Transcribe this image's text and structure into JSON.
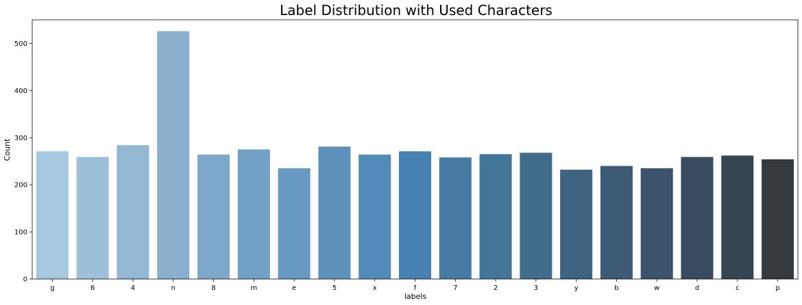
{
  "chart_data": {
    "type": "bar",
    "title": "Label Distribution with Used Characters",
    "xlabel": "labels",
    "ylabel": "Count",
    "categories": [
      "g",
      "6",
      "4",
      "n",
      "8",
      "m",
      "e",
      "5",
      "x",
      "f",
      "7",
      "2",
      "3",
      "y",
      "b",
      "w",
      "d",
      "c",
      "p"
    ],
    "values": [
      271,
      259,
      284,
      526,
      264,
      275,
      235,
      281,
      264,
      271,
      258,
      265,
      268,
      232,
      240,
      235,
      259,
      262,
      254
    ],
    "ylim": [
      0,
      550
    ],
    "yticks": [
      0,
      100,
      200,
      300,
      400,
      500
    ],
    "grid": false,
    "legend": "none",
    "palette": [
      "#a6c9df",
      "#9dc0da",
      "#93b8d4",
      "#89b0cd",
      "#7ea8c9",
      "#73a1c5",
      "#6899c2",
      "#5d92bd",
      "#528bb7",
      "#4982b2",
      "#457ba5",
      "#437599",
      "#416d8d",
      "#3f6481",
      "#3d5b75",
      "#3b546b",
      "#394b5e",
      "#374452",
      "#353a3f"
    ],
    "background": "#ffffff",
    "axis_color": "#000000"
  }
}
